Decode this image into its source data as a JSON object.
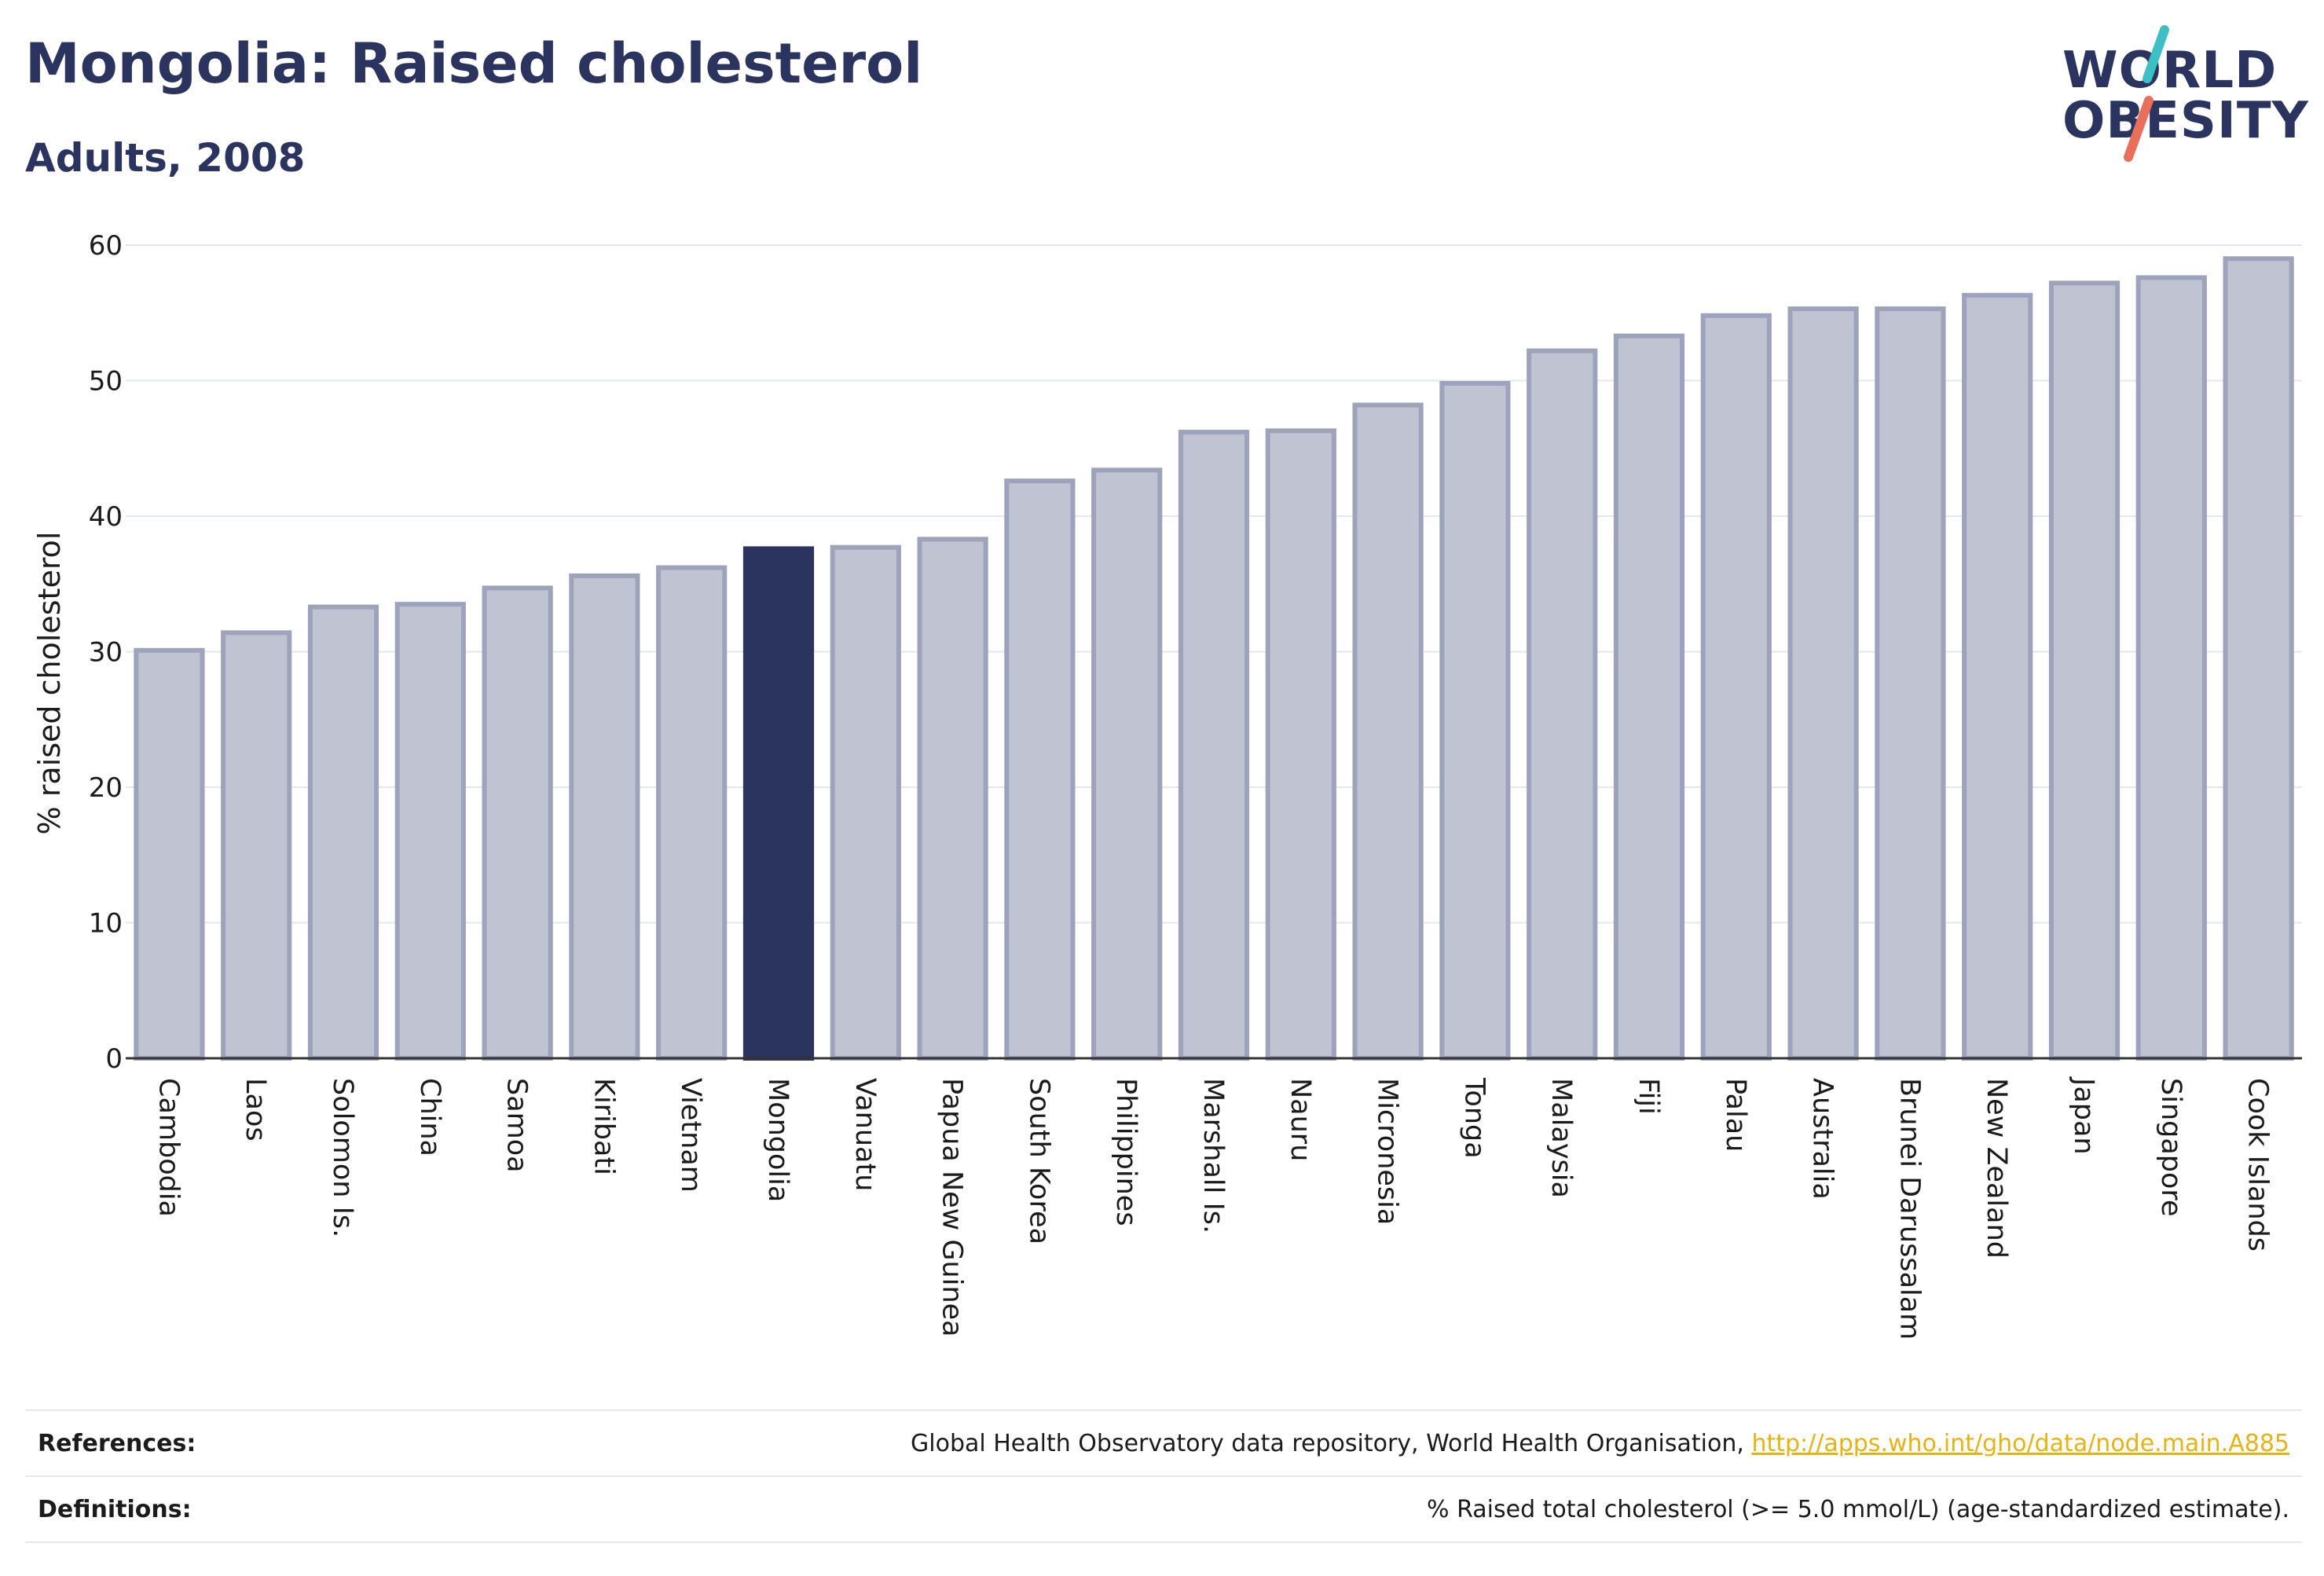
{
  "header": {
    "title": "Mongolia: Raised cholesterol",
    "subtitle": "Adults, 2008"
  },
  "logo": {
    "line1": "WORLD",
    "line2": "OBESITY",
    "text_color": "#2b345e",
    "slash_colors": [
      "#3dbfc4",
      "#e8705a"
    ]
  },
  "chart_data": {
    "type": "bar",
    "title": "Mongolia: Raised cholesterol",
    "subtitle": "Adults, 2008",
    "ylabel": "% raised cholesterol",
    "xlabel": "",
    "ylim": [
      0,
      60
    ],
    "yticks": [
      0,
      10,
      20,
      30,
      40,
      50,
      60
    ],
    "grid": true,
    "highlight": "Mongolia",
    "colors": {
      "bar_fill": "#c0c3d1",
      "bar_stroke": "#9ea2ba",
      "highlight_fill": "#2b345e",
      "grid": "#e4e7ee",
      "axis": "#333333"
    },
    "categories": [
      "Cambodia",
      "Laos",
      "Solomon Is.",
      "China",
      "Samoa",
      "Kiribati",
      "Vietnam",
      "Mongolia",
      "Vanuatu",
      "Papua New Guinea",
      "South Korea",
      "Philippines",
      "Marshall Is.",
      "Nauru",
      "Micronesia",
      "Tonga",
      "Malaysia",
      "Fiji",
      "Palau",
      "Australia",
      "Brunei Darussalam",
      "New Zealand",
      "Japan",
      "Singapore",
      "Cook Islands"
    ],
    "values": [
      30.1,
      31.4,
      33.3,
      33.5,
      34.7,
      35.6,
      36.2,
      37.6,
      37.7,
      38.3,
      42.6,
      43.4,
      46.2,
      46.3,
      48.2,
      49.8,
      52.2,
      53.3,
      54.8,
      55.3,
      55.3,
      56.3,
      57.2,
      57.6,
      59.0
    ]
  },
  "footer": {
    "references_label": "References:",
    "references_text": "Global Health Observatory data repository, World Health Organisation, ",
    "references_link": "http://apps.who.int/gho/data/node.main.A885",
    "definitions_label": "Definitions:",
    "definitions_text": "% Raised total cholesterol (>= 5.0 mmol/L) (age-standardized estimate)."
  }
}
